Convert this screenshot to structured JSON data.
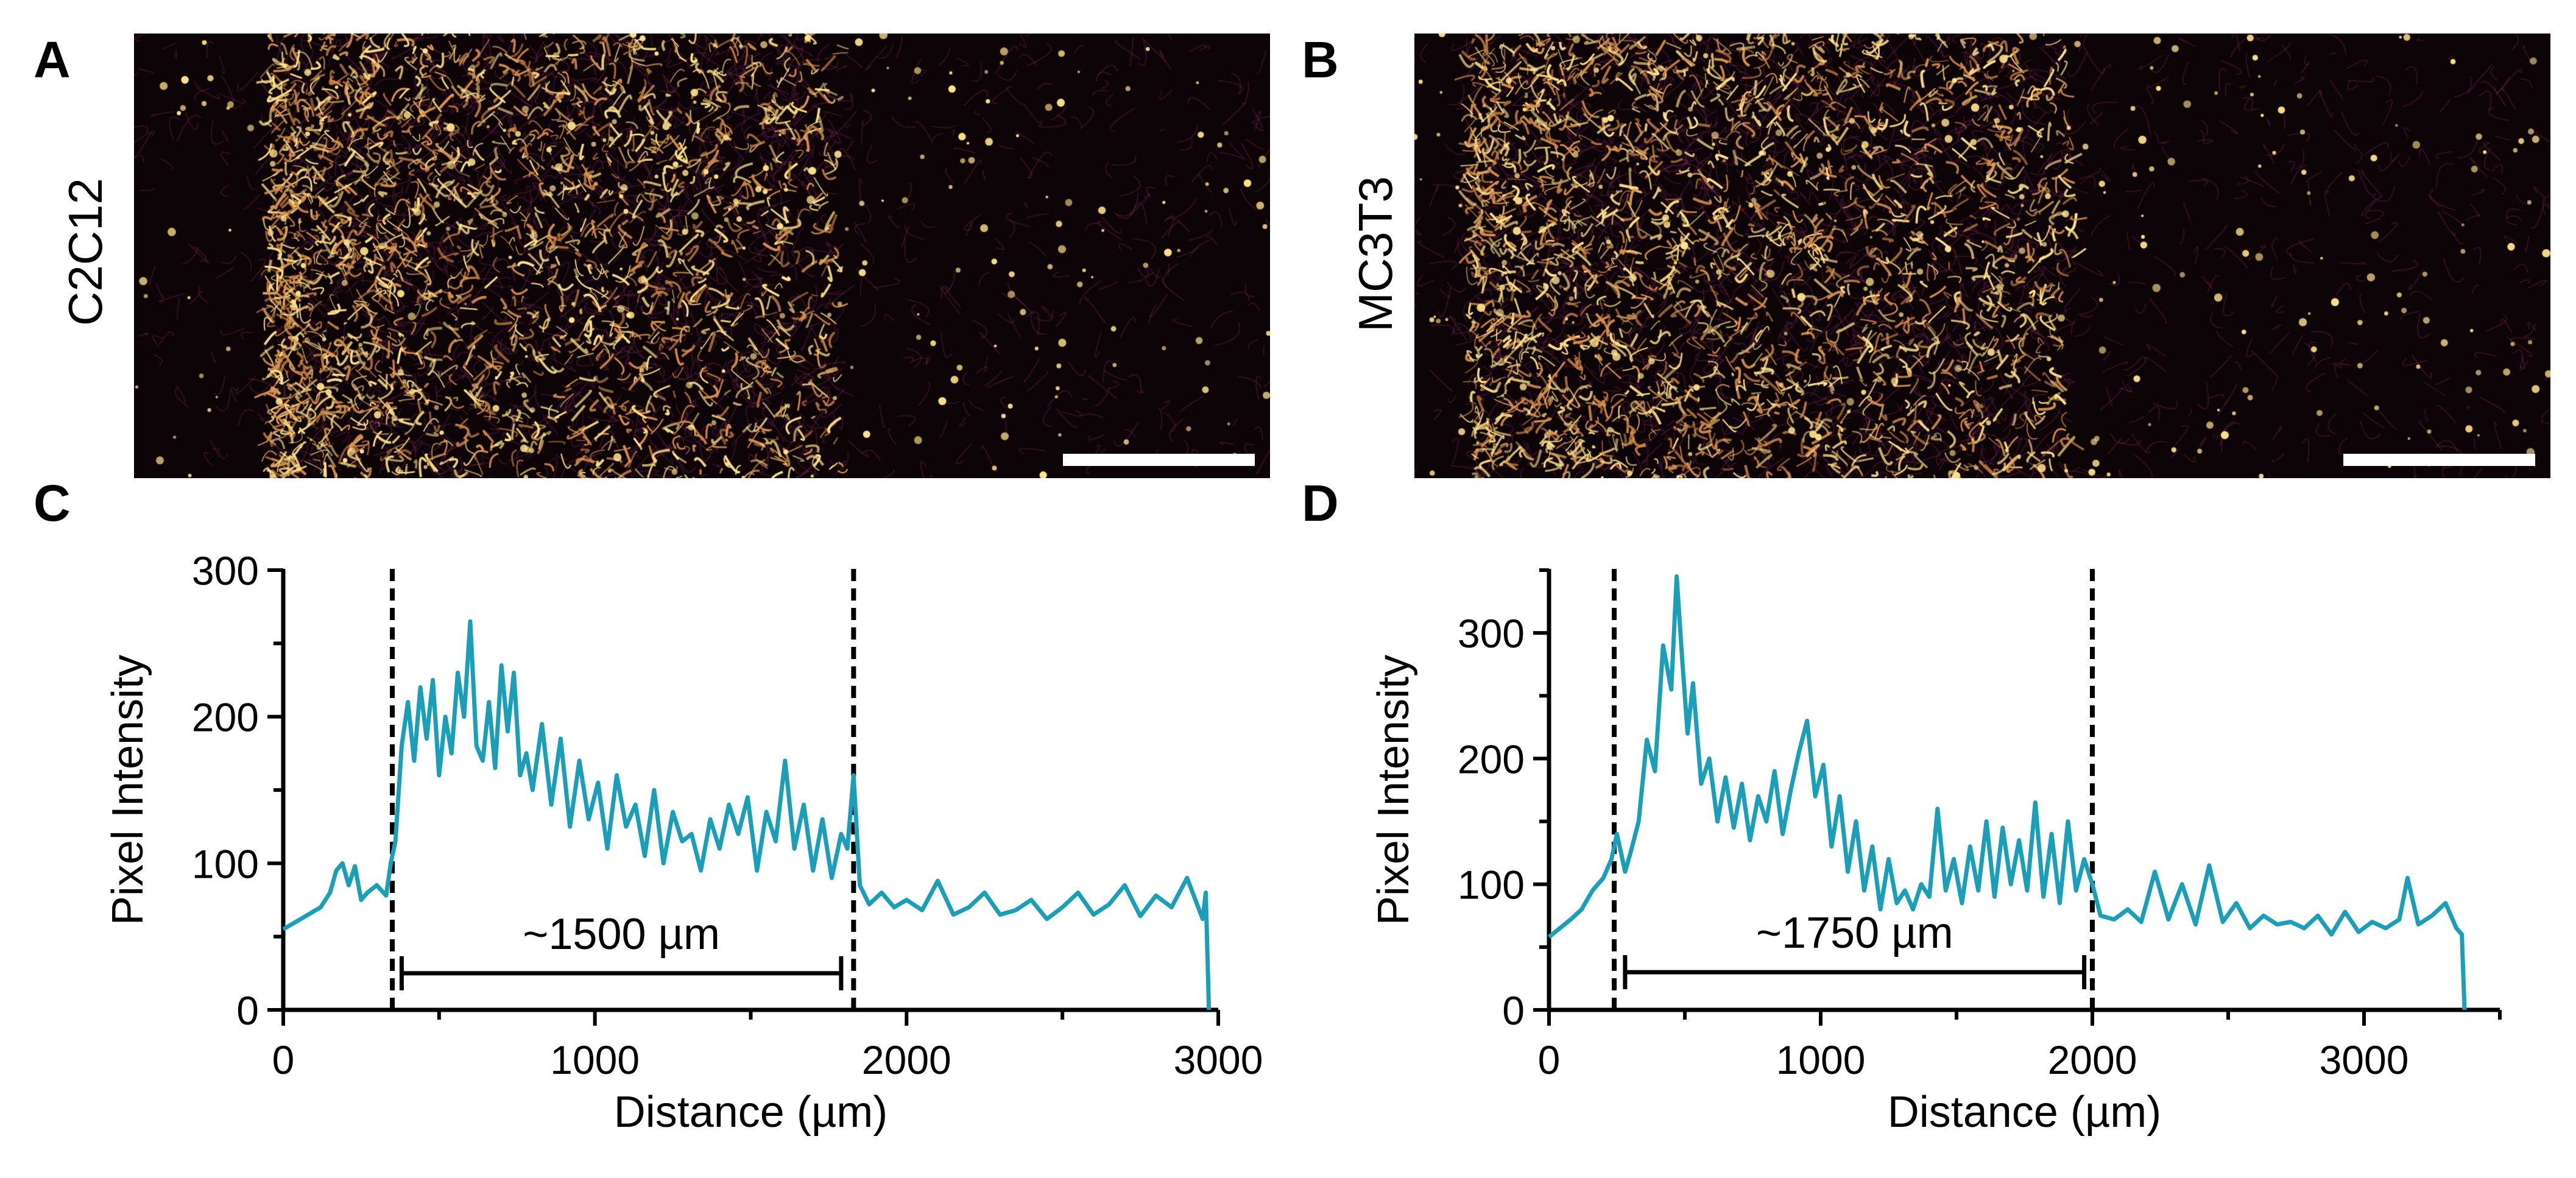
{
  "panels": {
    "a": {
      "letter": "A",
      "row_label": "C2C12"
    },
    "b": {
      "letter": "B",
      "row_label": "MC3T3"
    },
    "c": {
      "letter": "C"
    },
    "d": {
      "letter": "D"
    }
  },
  "colors": {
    "line": "#1b9fb8",
    "axis": "#000000",
    "micro_bg": "#0d0408",
    "micro_bright": "#ffe38a",
    "micro_mid": "#d9904a",
    "micro_dim": "#7a2b55"
  },
  "chart_data": [
    {
      "id": "C",
      "type": "line",
      "title": "",
      "xlabel": "Distance (µm)",
      "ylabel": "Pixel Intensity",
      "xlim": [
        0,
        3000
      ],
      "ylim": [
        0,
        300
      ],
      "xticks": [
        0,
        1000,
        2000,
        3000
      ],
      "xtick_labels": [
        "0",
        "1000",
        "2000",
        "3000"
      ],
      "yticks": [
        0,
        100,
        200,
        300
      ],
      "ytick_labels": [
        "0",
        "100",
        "200",
        "300"
      ],
      "dashed_lines_x": [
        350,
        1830
      ],
      "annotation": {
        "text": "~1500 µm",
        "x_start": 380,
        "x_end": 1790,
        "y": 25
      },
      "series": [
        {
          "name": "intensity",
          "x": [
            0,
            40,
            80,
            120,
            150,
            170,
            190,
            210,
            230,
            250,
            270,
            300,
            330,
            345,
            360,
            380,
            400,
            420,
            440,
            460,
            480,
            500,
            520,
            540,
            560,
            580,
            600,
            620,
            640,
            660,
            680,
            700,
            720,
            740,
            760,
            780,
            800,
            830,
            860,
            890,
            920,
            950,
            980,
            1010,
            1040,
            1070,
            1100,
            1130,
            1160,
            1190,
            1220,
            1250,
            1280,
            1310,
            1340,
            1370,
            1400,
            1430,
            1460,
            1490,
            1520,
            1550,
            1580,
            1610,
            1640,
            1670,
            1700,
            1730,
            1760,
            1790,
            1810,
            1830,
            1850,
            1880,
            1920,
            1960,
            2000,
            2050,
            2100,
            2150,
            2200,
            2250,
            2300,
            2350,
            2400,
            2450,
            2500,
            2550,
            2600,
            2650,
            2700,
            2750,
            2800,
            2850,
            2900,
            2950,
            2960,
            2970
          ],
          "values": [
            55,
            60,
            65,
            70,
            80,
            95,
            100,
            85,
            98,
            75,
            80,
            85,
            78,
            100,
            115,
            180,
            210,
            170,
            220,
            185,
            225,
            160,
            200,
            175,
            230,
            200,
            265,
            180,
            170,
            210,
            165,
            235,
            190,
            230,
            160,
            175,
            150,
            195,
            140,
            185,
            125,
            170,
            130,
            155,
            110,
            160,
            125,
            140,
            105,
            150,
            100,
            135,
            115,
            120,
            95,
            130,
            110,
            140,
            120,
            145,
            95,
            135,
            115,
            170,
            110,
            140,
            95,
            130,
            90,
            120,
            110,
            160,
            85,
            72,
            80,
            70,
            75,
            68,
            88,
            65,
            70,
            80,
            65,
            68,
            75,
            62,
            70,
            80,
            65,
            72,
            85,
            64,
            78,
            70,
            90,
            62,
            80,
            0
          ]
        }
      ]
    },
    {
      "id": "D",
      "type": "line",
      "title": "",
      "xlabel": "Distance (µm)",
      "ylabel": "Pixel Intensity",
      "xlim": [
        0,
        3500
      ],
      "ylim": [
        0,
        350
      ],
      "xticks": [
        0,
        1000,
        2000,
        3000
      ],
      "xtick_labels": [
        "0",
        "1000",
        "2000",
        "3000"
      ],
      "yticks": [
        0,
        100,
        200,
        300
      ],
      "ytick_labels": [
        "0",
        "100",
        "200",
        "300"
      ],
      "dashed_lines_x": [
        240,
        2000
      ],
      "annotation": {
        "text": "~1750 µm",
        "x_start": 280,
        "x_end": 1970,
        "y": 30
      },
      "series": [
        {
          "name": "intensity",
          "x": [
            0,
            40,
            80,
            120,
            160,
            200,
            230,
            250,
            280,
            300,
            330,
            360,
            390,
            420,
            450,
            470,
            490,
            510,
            530,
            560,
            590,
            620,
            650,
            680,
            710,
            740,
            770,
            800,
            830,
            860,
            890,
            920,
            950,
            980,
            1010,
            1040,
            1070,
            1100,
            1130,
            1160,
            1190,
            1220,
            1250,
            1280,
            1310,
            1340,
            1370,
            1400,
            1430,
            1460,
            1490,
            1520,
            1550,
            1580,
            1610,
            1640,
            1670,
            1700,
            1730,
            1760,
            1790,
            1820,
            1850,
            1880,
            1910,
            1940,
            1970,
            2000,
            2030,
            2080,
            2130,
            2180,
            2230,
            2280,
            2330,
            2380,
            2430,
            2480,
            2530,
            2580,
            2630,
            2680,
            2730,
            2780,
            2830,
            2880,
            2930,
            2980,
            3030,
            3080,
            3130,
            3160,
            3200,
            3250,
            3300,
            3340,
            3360,
            3370
          ],
          "values": [
            58,
            65,
            72,
            80,
            95,
            105,
            120,
            140,
            110,
            125,
            150,
            215,
            190,
            290,
            255,
            345,
            280,
            220,
            260,
            180,
            200,
            150,
            185,
            145,
            180,
            135,
            170,
            150,
            190,
            140,
            175,
            205,
            230,
            170,
            195,
            130,
            170,
            110,
            150,
            95,
            130,
            80,
            120,
            85,
            95,
            80,
            100,
            90,
            160,
            95,
            120,
            85,
            130,
            95,
            150,
            90,
            145,
            100,
            135,
            95,
            165,
            90,
            140,
            85,
            150,
            95,
            120,
            100,
            75,
            72,
            80,
            70,
            110,
            72,
            100,
            68,
            115,
            70,
            85,
            65,
            75,
            68,
            70,
            65,
            75,
            60,
            78,
            62,
            70,
            65,
            72,
            105,
            68,
            75,
            85,
            65,
            60,
            0
          ]
        }
      ]
    }
  ]
}
